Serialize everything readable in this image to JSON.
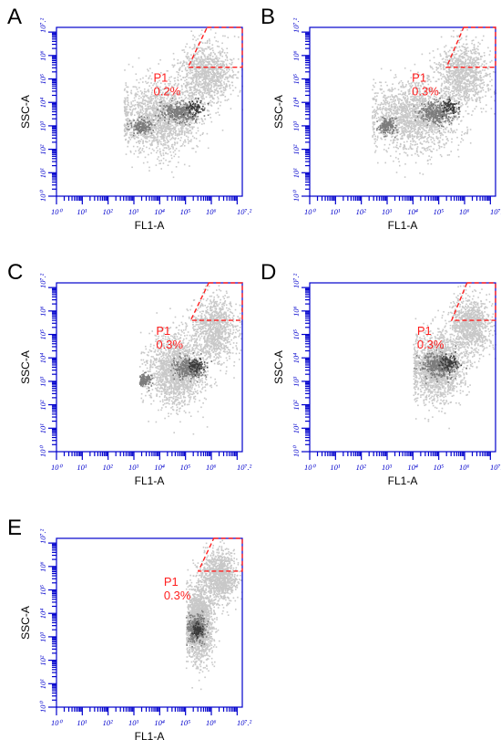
{
  "chart_data": [
    {
      "type": "scatter",
      "panel": "A",
      "xlabel": "FL1-A",
      "ylabel": "SSC-A",
      "xlim": [
        0,
        7.2
      ],
      "ylim": [
        0,
        7.2
      ],
      "x_ticks": [
        "10⁰",
        "10¹",
        "10²",
        "10³",
        "10⁴",
        "10⁵",
        "10⁶",
        "10⁷.²"
      ],
      "y_ticks": [
        "10⁰",
        "10¹",
        "10²",
        "10³",
        "10⁴",
        "10⁵",
        "10⁶",
        "10⁷.²"
      ],
      "gate": {
        "name": "P1",
        "percent": "0.2%",
        "x_range": [
          5.1,
          7.2
        ],
        "y_range": [
          5.5,
          7.2
        ]
      },
      "clusters": [
        {
          "x": 4.0,
          "y": 3.4,
          "sx": 1.4,
          "sy": 1.4,
          "level": 1,
          "weight": 1.0
        },
        {
          "x": 5.8,
          "y": 5.2,
          "sx": 0.9,
          "sy": 1.2,
          "level": 1,
          "weight": 0.6
        },
        {
          "x": 3.3,
          "y": 3.0,
          "sx": 0.3,
          "sy": 0.3,
          "level": 2,
          "weight": 0.4
        },
        {
          "x": 4.8,
          "y": 3.6,
          "sx": 0.65,
          "sy": 0.4,
          "level": 2,
          "weight": 0.8
        },
        {
          "x": 5.35,
          "y": 3.8,
          "sx": 0.3,
          "sy": 0.3,
          "level": 3,
          "weight": 0.5
        }
      ],
      "x_floor": 2.6
    },
    {
      "type": "scatter",
      "panel": "B",
      "xlabel": "FL1-A",
      "ylabel": "SSC-A",
      "xlim": [
        0,
        7.2
      ],
      "ylim": [
        0,
        7.2
      ],
      "x_ticks": [
        "10⁰",
        "10¹",
        "10²",
        "10³",
        "10⁴",
        "10⁵",
        "10⁶",
        "10⁷.²"
      ],
      "y_ticks": [
        "10⁰",
        "10¹",
        "10²",
        "10³",
        "10⁴",
        "10⁵",
        "10⁶",
        "10⁷.²"
      ],
      "gate": {
        "name": "P1",
        "percent": "0.3%",
        "x_range": [
          5.3,
          7.2
        ],
        "y_range": [
          5.5,
          7.2
        ]
      },
      "clusters": [
        {
          "x": 4.0,
          "y": 3.4,
          "sx": 1.5,
          "sy": 1.4,
          "level": 1,
          "weight": 1.0
        },
        {
          "x": 5.9,
          "y": 5.2,
          "sx": 0.9,
          "sy": 1.2,
          "level": 1,
          "weight": 0.6
        },
        {
          "x": 3.0,
          "y": 3.0,
          "sx": 0.3,
          "sy": 0.3,
          "level": 2,
          "weight": 0.4
        },
        {
          "x": 4.9,
          "y": 3.6,
          "sx": 0.65,
          "sy": 0.45,
          "level": 2,
          "weight": 0.8
        },
        {
          "x": 5.4,
          "y": 3.8,
          "sx": 0.3,
          "sy": 0.3,
          "level": 3,
          "weight": 0.5
        }
      ],
      "x_floor": 2.4
    },
    {
      "type": "scatter",
      "panel": "C",
      "xlabel": "FL1-A",
      "ylabel": "SSC-A",
      "xlim": [
        0,
        7.2
      ],
      "ylim": [
        0,
        7.2
      ],
      "x_ticks": [
        "10⁰",
        "10¹",
        "10²",
        "10³",
        "10⁴",
        "10⁵",
        "10⁶",
        "10⁷.²"
      ],
      "y_ticks": [
        "10⁰",
        "10¹",
        "10²",
        "10³",
        "10⁴",
        "10⁵",
        "10⁶",
        "10⁷.²"
      ],
      "gate": {
        "name": "P1",
        "percent": "0.3%",
        "x_range": [
          5.2,
          7.2
        ],
        "y_range": [
          5.6,
          7.2
        ]
      },
      "clusters": [
        {
          "x": 4.6,
          "y": 3.5,
          "sx": 1.0,
          "sy": 1.4,
          "level": 1,
          "weight": 1.0
        },
        {
          "x": 6.1,
          "y": 5.3,
          "sx": 0.8,
          "sy": 1.2,
          "level": 1,
          "weight": 0.6
        },
        {
          "x": 3.4,
          "y": 3.1,
          "sx": 0.25,
          "sy": 0.25,
          "level": 2,
          "weight": 0.3
        },
        {
          "x": 5.1,
          "y": 3.6,
          "sx": 0.55,
          "sy": 0.4,
          "level": 2,
          "weight": 0.8
        },
        {
          "x": 5.4,
          "y": 3.7,
          "sx": 0.3,
          "sy": 0.3,
          "level": 3,
          "weight": 0.5
        }
      ],
      "x_floor": 3.2
    },
    {
      "type": "scatter",
      "panel": "D",
      "xlabel": "FL1-A",
      "ylabel": "SSC-A",
      "xlim": [
        0,
        7.2
      ],
      "ylim": [
        0,
        7.2
      ],
      "x_ticks": [
        "10⁰",
        "10¹",
        "10²",
        "10³",
        "10⁴",
        "10⁵",
        "10⁶",
        "10⁷.²"
      ],
      "y_ticks": [
        "10⁰",
        "10¹",
        "10²",
        "10³",
        "10⁴",
        "10⁵",
        "10⁶",
        "10⁷.²"
      ],
      "gate": {
        "name": "P1",
        "percent": "0.3%",
        "x_range": [
          5.5,
          7.2
        ],
        "y_range": [
          5.6,
          7.2
        ]
      },
      "clusters": [
        {
          "x": 4.9,
          "y": 3.6,
          "sx": 0.9,
          "sy": 1.3,
          "level": 1,
          "weight": 1.0
        },
        {
          "x": 6.2,
          "y": 5.4,
          "sx": 0.7,
          "sy": 1.1,
          "level": 1,
          "weight": 0.6
        },
        {
          "x": 5.0,
          "y": 3.7,
          "sx": 0.6,
          "sy": 0.45,
          "level": 2,
          "weight": 0.9
        },
        {
          "x": 5.4,
          "y": 3.8,
          "sx": 0.3,
          "sy": 0.3,
          "level": 3,
          "weight": 0.6
        }
      ],
      "x_floor": 4.0
    },
    {
      "type": "scatter",
      "panel": "E",
      "xlabel": "FL1-A",
      "ylabel": "SSC-A",
      "xlim": [
        0,
        7.2
      ],
      "ylim": [
        0,
        7.2
      ],
      "x_ticks": [
        "10⁰",
        "10¹",
        "10²",
        "10³",
        "10⁴",
        "10⁵",
        "10⁶",
        "10⁷.²"
      ],
      "y_ticks": [
        "10⁰",
        "10¹",
        "10²",
        "10³",
        "10⁴",
        "10⁵",
        "10⁶",
        "10⁷.²"
      ],
      "gate": {
        "name": "P1",
        "percent": "0.3%",
        "x_range": [
          5.5,
          7.2
        ],
        "y_range": [
          5.8,
          7.2
        ]
      },
      "clusters": [
        {
          "x": 5.5,
          "y": 3.6,
          "sx": 0.45,
          "sy": 1.5,
          "level": 1,
          "weight": 1.0
        },
        {
          "x": 6.3,
          "y": 5.6,
          "sx": 0.6,
          "sy": 1.0,
          "level": 1,
          "weight": 0.6
        },
        {
          "x": 5.4,
          "y": 3.4,
          "sx": 0.3,
          "sy": 0.55,
          "level": 2,
          "weight": 0.8
        },
        {
          "x": 5.45,
          "y": 3.3,
          "sx": 0.18,
          "sy": 0.25,
          "level": 3,
          "weight": 0.5
        }
      ],
      "x_floor": 5.0
    }
  ],
  "colors": {
    "axis": "#0000cc",
    "gate": "#ff2020",
    "density": [
      "#c8c8c8",
      "#7c7c7c",
      "#3a3a3a"
    ],
    "letter": "#000000"
  }
}
